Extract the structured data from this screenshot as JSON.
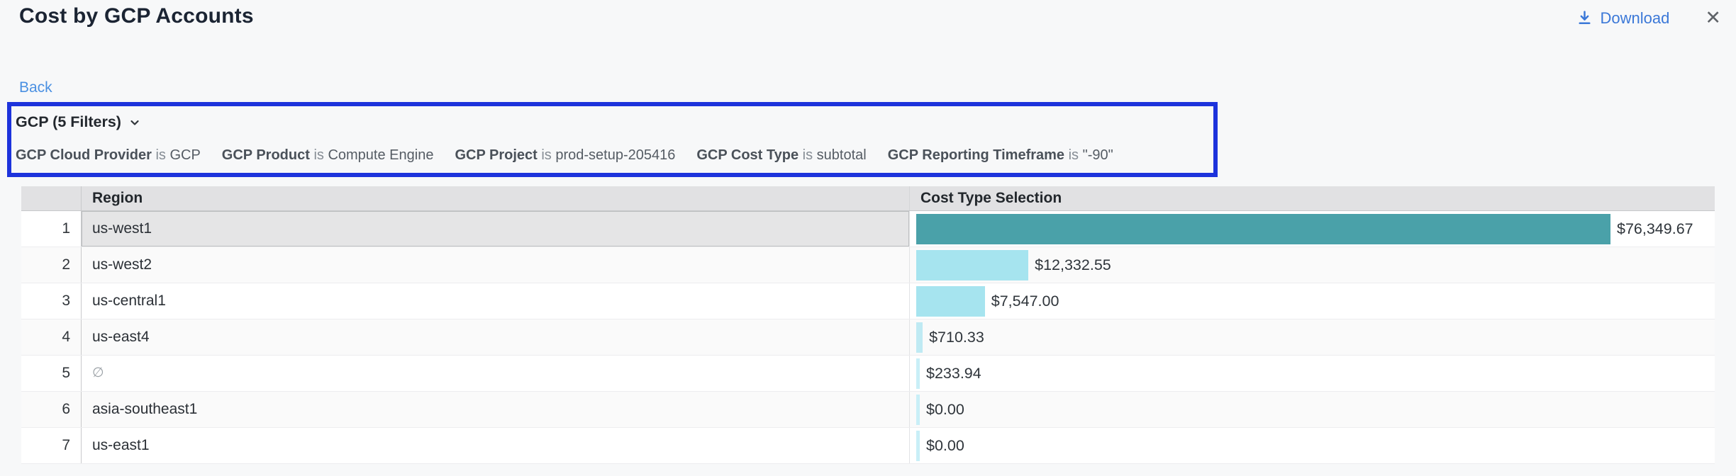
{
  "header": {
    "title": "Cost by GCP Accounts",
    "download_label": "Download",
    "close_glyph": "✕"
  },
  "nav": {
    "back_label": "Back"
  },
  "filters": {
    "summary_label": "GCP (5 Filters)",
    "items": [
      {
        "field": "GCP Cloud Provider",
        "op": "is",
        "value": "GCP"
      },
      {
        "field": "GCP Product",
        "op": "is",
        "value": "Compute Engine"
      },
      {
        "field": "GCP Project",
        "op": "is",
        "value": "prod-setup-205416"
      },
      {
        "field": "GCP Cost Type",
        "op": "is",
        "value": "subtotal"
      },
      {
        "field": "GCP Reporting Timeframe",
        "op": "is",
        "value": "\"-90\""
      }
    ]
  },
  "table": {
    "columns": [
      "Region",
      "Cost Type Selection"
    ],
    "rows": [
      {
        "index": 1,
        "region": "us-west1",
        "value": 76349.67,
        "value_label": "$76,349.67",
        "bar_color": "#4aa1a9",
        "selected": true,
        "muted": false
      },
      {
        "index": 2,
        "region": "us-west2",
        "value": 12332.55,
        "value_label": "$12,332.55",
        "bar_color": "#a6e4ef",
        "selected": false,
        "muted": false
      },
      {
        "index": 3,
        "region": "us-central1",
        "value": 7547.0,
        "value_label": "$7,547.00",
        "bar_color": "#a6e4ef",
        "selected": false,
        "muted": false
      },
      {
        "index": 4,
        "region": "us-east4",
        "value": 710.33,
        "value_label": "$710.33",
        "bar_color": "#bfeaf3",
        "selected": false,
        "muted": false
      },
      {
        "index": 5,
        "region": "∅",
        "value": 233.94,
        "value_label": "$233.94",
        "bar_color": "#c9eff7",
        "selected": false,
        "muted": true
      },
      {
        "index": 6,
        "region": "asia-southeast1",
        "value": 0.0,
        "value_label": "$0.00",
        "bar_color": "#c9eff7",
        "selected": false,
        "muted": false
      },
      {
        "index": 7,
        "region": "us-east1",
        "value": 0.0,
        "value_label": "$0.00",
        "bar_color": "#c9eff7",
        "selected": false,
        "muted": false
      }
    ],
    "max_value": 76349.67
  },
  "chart_data": {
    "type": "bar",
    "categories": [
      "us-west1",
      "us-west2",
      "us-central1",
      "us-east4",
      "∅",
      "asia-southeast1",
      "us-east1"
    ],
    "values": [
      76349.67,
      12332.55,
      7547.0,
      710.33,
      233.94,
      0.0,
      0.0
    ],
    "title": "Cost by GCP Accounts",
    "xlabel": "Cost Type Selection",
    "ylabel": "Region",
    "orientation": "horizontal"
  },
  "colors": {
    "accent_blue": "#3b78d8",
    "back_link_blue": "#4a90e2",
    "highlight_box_blue": "#1d33dc",
    "bar_teal": "#4aa1a9",
    "bar_cyan": "#a6e4ef",
    "bar_cyan_light": "#c9eff7",
    "header_gray": "#e1e1e3",
    "selected_cell_gray": "#e5e5e6",
    "page_bg": "#f7f8f9"
  },
  "icons": {
    "download": "download-icon",
    "close": "close-icon",
    "chevron": "chevron-down-icon"
  }
}
